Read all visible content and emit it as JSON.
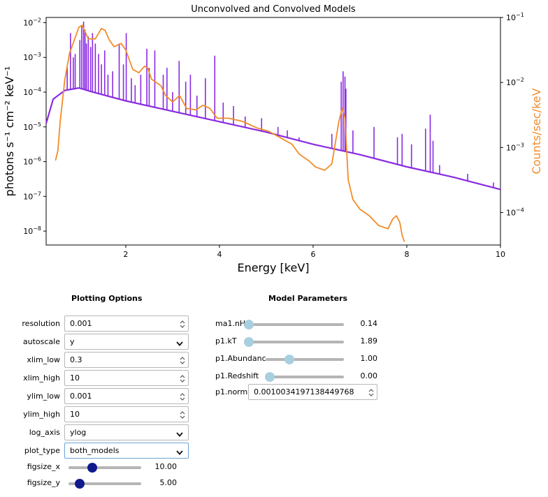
{
  "chart_data": {
    "type": "line",
    "title": "Unconvolved and Convolved Models",
    "xlabel": "Energy [keV]",
    "ylabel_left": "photons s⁻¹ cm⁻² keV⁻¹",
    "ylabel_right": "Counts/sec/keV",
    "xlim": [
      0.3,
      10
    ],
    "ylim_left_log10": [
      -8.4,
      -1.85
    ],
    "ylim_right_log10": [
      -4.5,
      -1.0
    ],
    "x_ticks": [
      2,
      4,
      6,
      8,
      10
    ],
    "y_ticks_left": [
      {
        "mant": "10",
        "exp": "-2",
        "log": -2
      },
      {
        "mant": "10",
        "exp": "-3",
        "log": -3
      },
      {
        "mant": "10",
        "exp": "-4",
        "log": -4
      },
      {
        "mant": "10",
        "exp": "-5",
        "log": -5
      },
      {
        "mant": "10",
        "exp": "-6",
        "log": -6
      },
      {
        "mant": "10",
        "exp": "-7",
        "log": -7
      },
      {
        "mant": "10",
        "exp": "-8",
        "log": -8
      }
    ],
    "y_ticks_right": [
      {
        "mant": "10",
        "exp": "-1",
        "log": -1
      },
      {
        "mant": "10",
        "exp": "-2",
        "log": -2
      },
      {
        "mant": "10",
        "exp": "-3",
        "log": -3
      },
      {
        "mant": "10",
        "exp": "-4",
        "log": -4
      }
    ],
    "series": [
      {
        "name": "unconvolved",
        "axis": "left",
        "color": "#8a2be2",
        "continuum_log10": [
          [
            0.3,
            -4.9
          ],
          [
            0.45,
            -4.2
          ],
          [
            0.7,
            -3.95
          ],
          [
            1.0,
            -3.88
          ],
          [
            1.3,
            -4.0
          ],
          [
            2.0,
            -4.25
          ],
          [
            3.0,
            -4.55
          ],
          [
            4.0,
            -4.85
          ],
          [
            5.0,
            -5.15
          ],
          [
            6.0,
            -5.5
          ],
          [
            7.0,
            -5.8
          ],
          [
            8.0,
            -6.15
          ],
          [
            9.0,
            -6.45
          ],
          [
            10.0,
            -6.8
          ]
        ],
        "lines_log10": [
          [
            0.75,
            -3.3
          ],
          [
            0.82,
            -2.3
          ],
          [
            0.88,
            -3.0
          ],
          [
            0.92,
            -2.9
          ],
          [
            1.02,
            -2.5
          ],
          [
            1.06,
            -2.1
          ],
          [
            1.1,
            -1.97
          ],
          [
            1.13,
            -2.2
          ],
          [
            1.16,
            -2.6
          ],
          [
            1.2,
            -2.4
          ],
          [
            1.25,
            -2.7
          ],
          [
            1.29,
            -2.3
          ],
          [
            1.35,
            -2.6
          ],
          [
            1.42,
            -2.9
          ],
          [
            1.48,
            -3.2
          ],
          [
            1.55,
            -2.8
          ],
          [
            1.62,
            -3.5
          ],
          [
            1.72,
            -3.4
          ],
          [
            1.86,
            -2.6
          ],
          [
            1.95,
            -3.2
          ],
          [
            2.01,
            -2.3
          ],
          [
            2.12,
            -3.6
          ],
          [
            2.2,
            -3.8
          ],
          [
            2.32,
            -3.5
          ],
          [
            2.45,
            -2.75
          ],
          [
            2.5,
            -3.3
          ],
          [
            2.62,
            -2.8
          ],
          [
            2.8,
            -3.5
          ],
          [
            2.88,
            -3.3
          ],
          [
            3.0,
            -4.0
          ],
          [
            3.14,
            -3.1
          ],
          [
            3.28,
            -3.7
          ],
          [
            3.38,
            -3.5
          ],
          [
            3.52,
            -4.1
          ],
          [
            3.7,
            -3.6
          ],
          [
            3.9,
            -2.95
          ],
          [
            4.08,
            -4.3
          ],
          [
            4.3,
            -4.4
          ],
          [
            4.55,
            -4.7
          ],
          [
            4.9,
            -4.75
          ],
          [
            5.25,
            -5.0
          ],
          [
            5.45,
            -5.1
          ],
          [
            5.7,
            -5.3
          ],
          [
            6.4,
            -5.2
          ],
          [
            6.6,
            -3.7
          ],
          [
            6.64,
            -3.4
          ],
          [
            6.68,
            -3.55
          ],
          [
            6.7,
            -3.9
          ],
          [
            6.85,
            -5.1
          ],
          [
            7.3,
            -5.0
          ],
          [
            7.8,
            -5.3
          ],
          [
            7.9,
            -5.2
          ],
          [
            8.1,
            -5.5
          ],
          [
            8.4,
            -5.05
          ],
          [
            8.5,
            -4.65
          ],
          [
            8.56,
            -5.4
          ],
          [
            8.7,
            -6.1
          ],
          [
            9.3,
            -6.35
          ],
          [
            9.85,
            -6.6
          ]
        ]
      },
      {
        "name": "convolved",
        "axis": "right",
        "color": "#f28c28",
        "points_log10": [
          [
            0.5,
            -3.2
          ],
          [
            0.55,
            -3.05
          ],
          [
            0.6,
            -2.6
          ],
          [
            0.7,
            -1.95
          ],
          [
            0.8,
            -1.55
          ],
          [
            0.9,
            -1.35
          ],
          [
            1.0,
            -1.15
          ],
          [
            1.07,
            -1.12
          ],
          [
            1.12,
            -1.2
          ],
          [
            1.2,
            -1.33
          ],
          [
            1.35,
            -1.33
          ],
          [
            1.48,
            -1.17
          ],
          [
            1.56,
            -1.2
          ],
          [
            1.65,
            -1.35
          ],
          [
            1.75,
            -1.45
          ],
          [
            1.9,
            -1.4
          ],
          [
            2.0,
            -1.5
          ],
          [
            2.15,
            -1.8
          ],
          [
            2.28,
            -1.85
          ],
          [
            2.4,
            -1.75
          ],
          [
            2.47,
            -1.78
          ],
          [
            2.55,
            -1.95
          ],
          [
            2.65,
            -2.0
          ],
          [
            2.75,
            -2.05
          ],
          [
            2.85,
            -2.2
          ],
          [
            3.0,
            -2.3
          ],
          [
            3.15,
            -2.2
          ],
          [
            3.3,
            -2.4
          ],
          [
            3.5,
            -2.42
          ],
          [
            3.65,
            -2.35
          ],
          [
            3.8,
            -2.4
          ],
          [
            3.95,
            -2.55
          ],
          [
            4.2,
            -2.55
          ],
          [
            4.5,
            -2.6
          ],
          [
            4.8,
            -2.7
          ],
          [
            5.05,
            -2.75
          ],
          [
            5.3,
            -2.85
          ],
          [
            5.55,
            -2.95
          ],
          [
            5.7,
            -3.1
          ],
          [
            5.8,
            -3.15
          ],
          [
            5.9,
            -3.2
          ],
          [
            6.05,
            -3.3
          ],
          [
            6.25,
            -3.35
          ],
          [
            6.4,
            -3.25
          ],
          [
            6.55,
            -2.6
          ],
          [
            6.62,
            -2.4
          ],
          [
            6.68,
            -2.55
          ],
          [
            6.75,
            -3.5
          ],
          [
            6.85,
            -3.8
          ],
          [
            7.0,
            -3.95
          ],
          [
            7.2,
            -4.05
          ],
          [
            7.4,
            -4.2
          ],
          [
            7.6,
            -4.25
          ],
          [
            7.7,
            -4.1
          ],
          [
            7.78,
            -4.05
          ],
          [
            7.85,
            -4.15
          ],
          [
            7.9,
            -4.35
          ],
          [
            7.95,
            -4.45
          ]
        ]
      }
    ]
  },
  "plotting_options": {
    "title": "Plotting Options",
    "rows": [
      {
        "label": "resolution",
        "value": "0.001",
        "kind": "number"
      },
      {
        "label": "autoscale",
        "value": "y",
        "kind": "select"
      },
      {
        "label": "xlim_low",
        "value": "0.3",
        "kind": "number"
      },
      {
        "label": "xlim_high",
        "value": "10",
        "kind": "number"
      },
      {
        "label": "ylim_low",
        "value": "0.001",
        "kind": "number"
      },
      {
        "label": "ylim_high",
        "value": "10",
        "kind": "number"
      },
      {
        "label": "log_axis",
        "value": "ylog",
        "kind": "select"
      },
      {
        "label": "plot_type",
        "value": "both_models",
        "kind": "select",
        "focused": true
      }
    ],
    "sliders": [
      {
        "label": "figsize_x",
        "value": "10.00",
        "fraction": 0.33
      },
      {
        "label": "figsize_y",
        "value": "5.00",
        "fraction": 0.15
      }
    ]
  },
  "model_parameters": {
    "title": "Model Parameters",
    "sliders": [
      {
        "label": "ma1.nH",
        "value": "0.14",
        "fraction": 0.0
      },
      {
        "label": "p1.kT",
        "value": "1.89",
        "fraction": 0.0
      },
      {
        "label": "p1.Abundanc",
        "value": "1.00",
        "fraction": 0.3
      },
      {
        "label": "p1.Redshift",
        "value": "0.00",
        "fraction": 0.05
      }
    ],
    "norm": {
      "label": "p1.norm",
      "value": "0.0010034197138449768"
    }
  }
}
